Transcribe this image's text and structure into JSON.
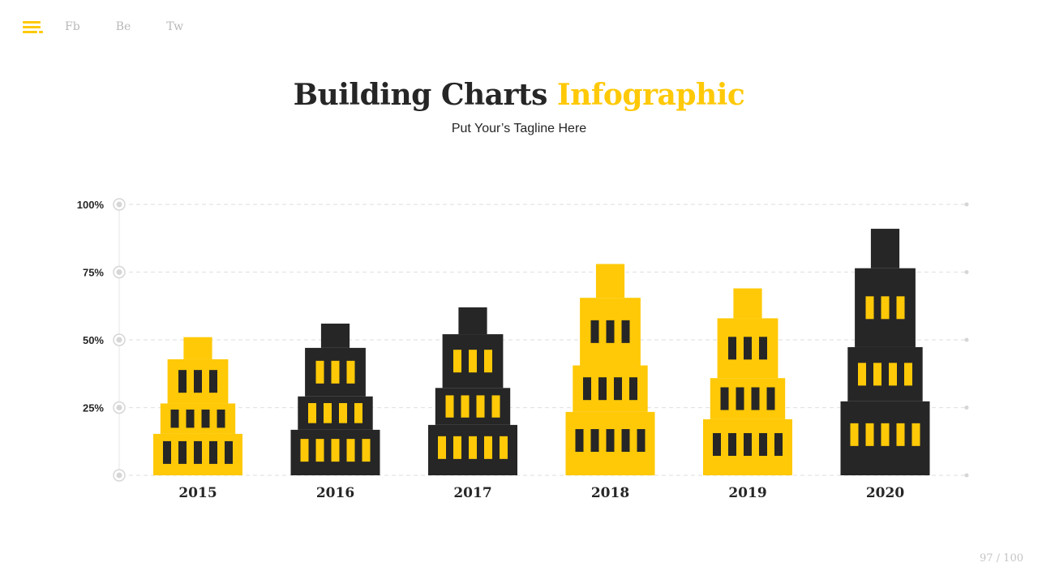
{
  "nav": {
    "links": [
      "Fb",
      "Be",
      "Tw"
    ]
  },
  "header": {
    "title_main": "Building Charts",
    "title_accent": "Infographic",
    "tagline": "Put Your’s Tagline Here"
  },
  "footer": {
    "page_indicator": "97 / 100"
  },
  "colors": {
    "accent": "#FFC907",
    "dark": "#262626",
    "grid": "#e4e4e4",
    "muted": "#b8b8b8"
  },
  "chart_data": {
    "type": "bar",
    "title": "",
    "xlabel": "",
    "ylabel": "",
    "ylim": [
      0,
      100
    ],
    "y_ticks": [
      {
        "value": 0,
        "label": ""
      },
      {
        "value": 25,
        "label": "25%"
      },
      {
        "value": 50,
        "label": "50%"
      },
      {
        "value": 75,
        "label": "75%"
      },
      {
        "value": 100,
        "label": "100%"
      }
    ],
    "grid": true,
    "categories": [
      "2015",
      "2016",
      "2017",
      "2018",
      "2019",
      "2020"
    ],
    "values": [
      51,
      56,
      62,
      78,
      69,
      91
    ],
    "bar_colors": [
      "#FFC907",
      "#262626",
      "#262626",
      "#FFC907",
      "#FFC907",
      "#262626"
    ]
  }
}
